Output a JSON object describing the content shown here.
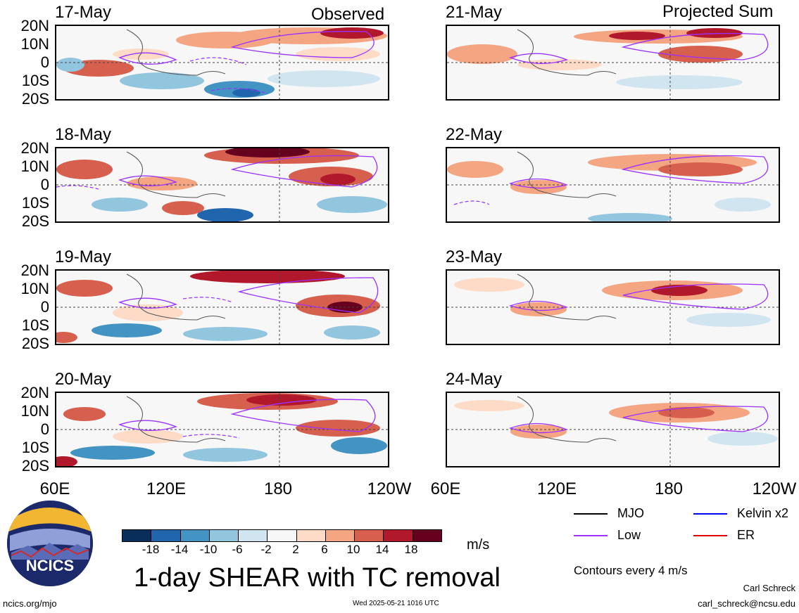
{
  "panels_left": {
    "header": "Observed",
    "dates": [
      "17-May",
      "18-May",
      "19-May",
      "20-May"
    ]
  },
  "panels_right": {
    "header": "Projected Sum",
    "dates": [
      "21-May",
      "22-May",
      "23-May",
      "24-May"
    ]
  },
  "lat_labels": [
    "20N",
    "10N",
    "0",
    "10S",
    "20S"
  ],
  "lon_labels_left": [
    "60E",
    "120E",
    "180",
    "120W"
  ],
  "lon_labels_right": [
    "60E",
    "120E",
    "180",
    "120W"
  ],
  "colorbar": {
    "colors": [
      "#0a2e5c",
      "#2166ac",
      "#4393c3",
      "#92c5de",
      "#d1e5f0",
      "#f7f7f7",
      "#fddbc7",
      "#f4a582",
      "#d6604d",
      "#b2182b",
      "#67001f"
    ],
    "labels": [
      "-18",
      "-14",
      "-10",
      "-6",
      "-2",
      "2",
      "6",
      "10",
      "14",
      "18"
    ],
    "unit": "m/s"
  },
  "title": "1-day SHEAR with TC removal",
  "legend": {
    "items": [
      {
        "label": "MJO",
        "color": "#000000"
      },
      {
        "label": "Kelvin x2",
        "color": "#0000ff"
      },
      {
        "label": "Low",
        "color": "#9b30ff"
      },
      {
        "label": "ER",
        "color": "#e00000"
      }
    ],
    "note": "Contours every 4 m/s"
  },
  "logo_text": "NCICS",
  "footer": {
    "url": "ncics.org/mjo",
    "timestamp": "Wed 2025-05-21 1016 UTC",
    "author": "Carl Schreck",
    "email": "carl_schreck@ncsu.edu"
  }
}
